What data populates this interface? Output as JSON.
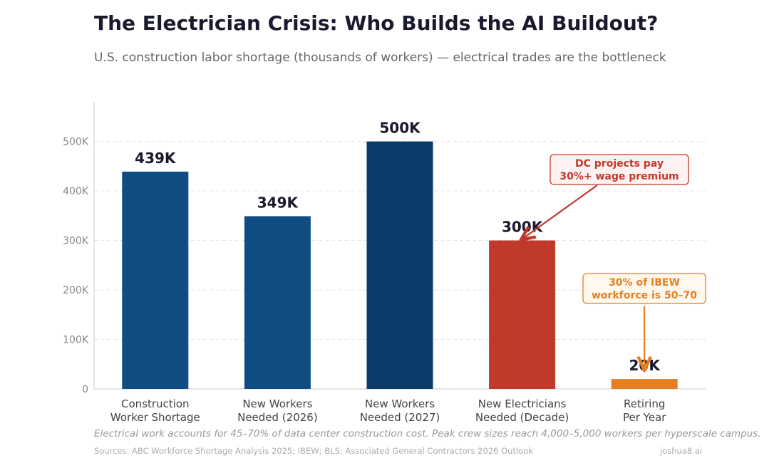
{
  "title": "The Electrician Crisis: Who Builds the AI Buildout?",
  "subtitle": "U.S. construction labor shortage (thousands of workers) — electrical trades are the bottleneck",
  "footnote": "Electrical work accounts for 45–70% of data center construction cost. Peak crew sizes reach 4,000–5,000 workers per hyperscale campus.",
  "sources": "Sources: ABC Workforce Shortage Analysis 2025; IBEW; BLS; Associated General Contractors 2026 Outlook",
  "brand": "joshua8.ai",
  "chart_data": {
    "type": "bar",
    "categories": [
      "Construction\nWorker Shortage",
      "New Workers\nNeeded (2026)",
      "New Workers\nNeeded (2027)",
      "New Electricians\nNeeded (Decade)",
      "Retiring\nPer Year"
    ],
    "values": [
      439,
      349,
      500,
      300,
      20
    ],
    "data_labels": [
      "439K",
      "349K",
      "500K",
      "300K",
      "20K"
    ],
    "colors": [
      "#0f4c81",
      "#0f4c81",
      "#0b3b6b",
      "#c0392b",
      "#e67e22"
    ],
    "ylim": [
      0,
      580
    ],
    "yticks": [
      0,
      100,
      200,
      300,
      400,
      500
    ],
    "ytick_labels": [
      "0",
      "100K",
      "200K",
      "300K",
      "400K",
      "500K"
    ],
    "grid": true,
    "annotations": [
      {
        "text": "DC projects pay\n30%+ wage premium",
        "target_index": 3,
        "color": "#c0392b",
        "fill": "#fdf2f1"
      },
      {
        "text": "30% of IBEW\nworkforce is 50–70",
        "target_index": 4,
        "color": "#e67e22",
        "fill": "#fef8ef"
      }
    ]
  }
}
